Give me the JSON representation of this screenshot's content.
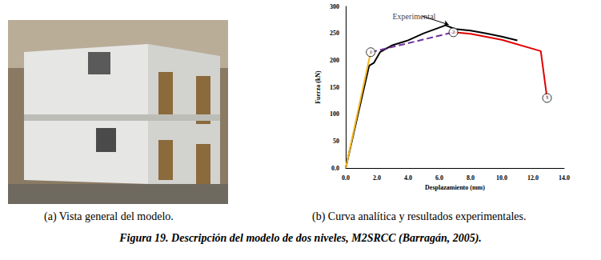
{
  "figure": {
    "panel_a_caption": "(a)  Vista general del modelo.",
    "panel_b_caption": "(b)  Curva analítica y resultados experimentales.",
    "caption": "Figura 19. Descripción del modelo de dos niveles, M2SRCC (Barragán, 2005)."
  },
  "chart_data": {
    "type": "line",
    "x_label": "Desplazamiento (mm)",
    "y_label": "Fuerza (kN)",
    "xlim": [
      0,
      14
    ],
    "xticks": [
      {
        "value": 0,
        "label": "0.0"
      },
      {
        "value": 2,
        "label": "2.0"
      },
      {
        "value": 4,
        "label": "4.0"
      },
      {
        "value": 6,
        "label": "6.0"
      },
      {
        "value": 8,
        "label": "8.0"
      },
      {
        "value": 10,
        "label": "10.0"
      },
      {
        "value": 12,
        "label": "12.0"
      },
      {
        "value": 14,
        "label": "14.0"
      }
    ],
    "ylim": [
      0,
      300
    ],
    "yticks": [
      {
        "value": 0,
        "label": "0.0"
      },
      50,
      100,
      150,
      200,
      250,
      300
    ],
    "grid": false,
    "series": [
      {
        "name": "Experimental",
        "color": "#000000",
        "line_style": "solid",
        "x": [
          0,
          1.5,
          1.8,
          2.2,
          3.0,
          4.0,
          5.0,
          6.4,
          7.0,
          8.0,
          9.0,
          10.0,
          11.0
        ],
        "values": [
          0,
          190,
          195,
          215,
          228,
          237,
          250,
          265,
          258,
          255,
          250,
          244,
          237
        ]
      },
      {
        "color": "#f5b820",
        "line_style": "solid",
        "x": [
          0,
          1.6
        ],
        "values": [
          0,
          215
        ]
      },
      {
        "color": "#7030a0",
        "line_style": "dashed",
        "x": [
          1.6,
          6.9
        ],
        "values": [
          215,
          252
        ]
      },
      {
        "color": "#e00000",
        "line_style": "solid",
        "x": [
          6.9,
          8.0,
          10.0,
          12.5,
          12.9
        ],
        "values": [
          252,
          249,
          238,
          217,
          130
        ]
      },
      {
        "type": "scatter",
        "marker": "circle",
        "color": "#000000",
        "x": [
          1.6,
          6.9,
          12.9
        ],
        "values": [
          215,
          252,
          130
        ],
        "point_labels": [
          "1",
          "2",
          "3"
        ]
      }
    ],
    "annotations": [
      {
        "text": "Experimental",
        "x": 3.0,
        "y": 282,
        "arrow_to": [
          6.6,
          266
        ]
      }
    ]
  }
}
